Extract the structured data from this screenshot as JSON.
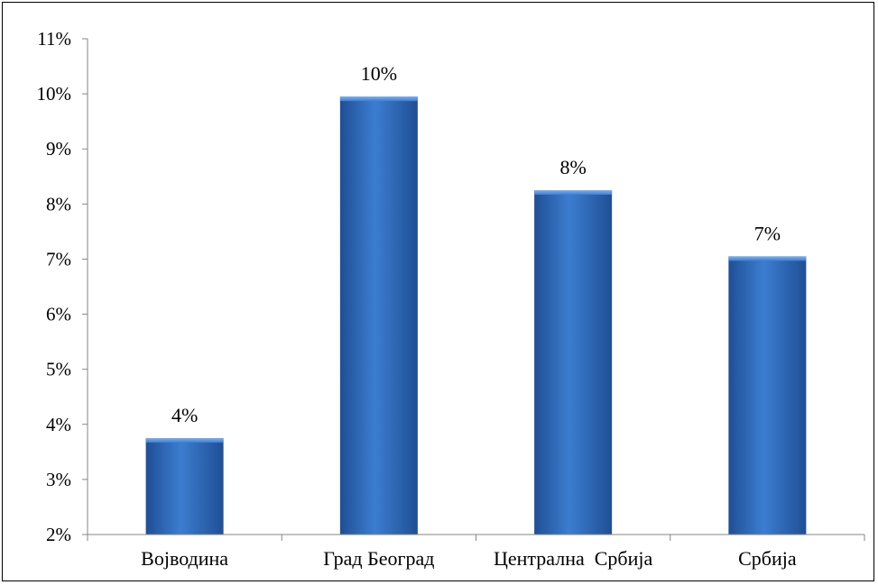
{
  "chart_data": {
    "type": "bar",
    "categories": [
      "Војводина",
      "Град Београд",
      "Централна  Србија",
      "Србија"
    ],
    "values": [
      3.75,
      9.95,
      8.25,
      7.05
    ],
    "data_labels": [
      "4%",
      "10%",
      "8%",
      "7%"
    ],
    "ylim": [
      2,
      11
    ],
    "yticks": [
      "2%",
      "3%",
      "4%",
      "5%",
      "6%",
      "7%",
      "8%",
      "9%",
      "10%",
      "11%"
    ],
    "grid": false,
    "legend": "none",
    "title": "",
    "xlabel": "",
    "ylabel": "",
    "colors": {
      "bar": "#3c7dd0",
      "bar_dark": "#1f4f95",
      "bar_light": "#7fb1ee",
      "axis": "#868686"
    }
  }
}
